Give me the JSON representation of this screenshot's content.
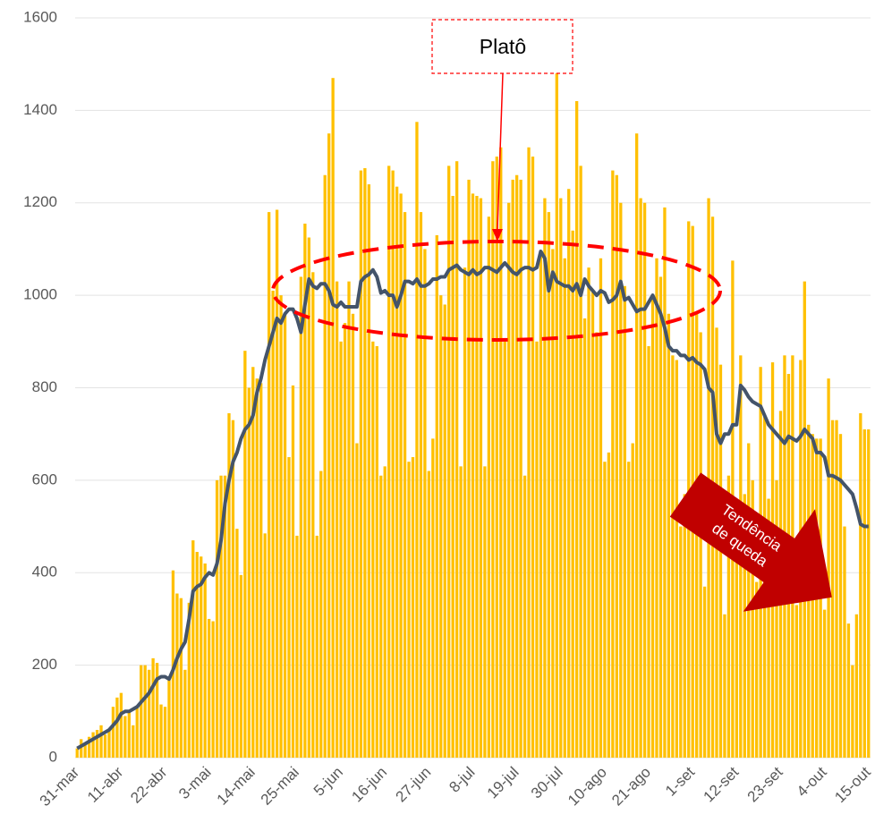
{
  "chart_data": {
    "type": "bar",
    "categories": [
      "31-mar",
      null,
      null,
      null,
      null,
      null,
      null,
      null,
      null,
      null,
      null,
      "11-abr",
      null,
      null,
      null,
      null,
      null,
      null,
      null,
      null,
      null,
      null,
      "22-abr",
      null,
      null,
      null,
      null,
      null,
      null,
      null,
      null,
      null,
      null,
      "3-mai",
      null,
      null,
      null,
      null,
      null,
      null,
      null,
      null,
      null,
      null,
      "14-mai",
      null,
      null,
      null,
      null,
      null,
      null,
      null,
      null,
      null,
      null,
      "25-mai",
      null,
      null,
      null,
      null,
      null,
      null,
      null,
      null,
      null,
      null,
      "5-jun",
      null,
      null,
      null,
      null,
      null,
      null,
      null,
      null,
      null,
      null,
      "16-jun",
      null,
      null,
      null,
      null,
      null,
      null,
      null,
      null,
      null,
      null,
      "27-jun",
      null,
      null,
      null,
      null,
      null,
      null,
      null,
      null,
      null,
      null,
      "8-jul",
      null,
      null,
      null,
      null,
      null,
      null,
      null,
      null,
      null,
      null,
      "19-jul",
      null,
      null,
      null,
      null,
      null,
      null,
      null,
      null,
      null,
      null,
      "30-jul",
      null,
      null,
      null,
      null,
      null,
      null,
      null,
      null,
      null,
      null,
      "10-ago",
      null,
      null,
      null,
      null,
      null,
      null,
      null,
      null,
      null,
      null,
      "21-ago",
      null,
      null,
      null,
      null,
      null,
      null,
      null,
      null,
      null,
      null,
      "1-set",
      null,
      null,
      null,
      null,
      null,
      null,
      null,
      null,
      null,
      null,
      "12-set",
      null,
      null,
      null,
      null,
      null,
      null,
      null,
      null,
      null,
      null,
      "23-set",
      null,
      null,
      null,
      null,
      null,
      null,
      null,
      null,
      null,
      null,
      "4-out",
      null,
      null,
      null,
      null,
      null,
      null,
      null,
      null,
      null,
      null,
      "15-out"
    ],
    "series": [
      {
        "type": "bar",
        "color": "#FFC000",
        "values": [
          20,
          40,
          30,
          45,
          55,
          60,
          70,
          50,
          60,
          110,
          130,
          140,
          90,
          100,
          70,
          110,
          200,
          200,
          190,
          215,
          205,
          115,
          110,
          170,
          405,
          355,
          345,
          190,
          335,
          470,
          445,
          435,
          420,
          300,
          295,
          600,
          610,
          610,
          745,
          730,
          495,
          395,
          880,
          800,
          845,
          820,
          810,
          485,
          1180,
          1010,
          1185,
          1000,
          960,
          650,
          805,
          480,
          1040,
          1155,
          1125,
          1050,
          480,
          620,
          1260,
          1350,
          1470,
          1030,
          900,
          940,
          1030,
          960,
          680,
          1270,
          1275,
          1240,
          900,
          890,
          610,
          630,
          1280,
          1270,
          1235,
          1220,
          1180,
          640,
          650,
          1375,
          1180,
          1100,
          620,
          690,
          1130,
          1000,
          980,
          1280,
          1215,
          1290,
          630,
          1060,
          1250,
          1220,
          1215,
          1210,
          630,
          1170,
          1290,
          1300,
          1320,
          900,
          1200,
          1250,
          1260,
          1250,
          610,
          1320,
          1300,
          900,
          1090,
          1210,
          1180,
          1100,
          1590,
          1210,
          1080,
          1230,
          1140,
          1420,
          1280,
          950,
          1060,
          1010,
          920,
          1080,
          640,
          660,
          1270,
          1260,
          1200,
          1020,
          640,
          680,
          1350,
          1210,
          1200,
          890,
          1000,
          1080,
          1040,
          1190,
          960,
          870,
          860,
          500,
          570,
          1160,
          1150,
          960,
          920,
          370,
          1210,
          1170,
          930,
          850,
          310,
          610,
          1075,
          440,
          870,
          570,
          680,
          600,
          380,
          845,
          740,
          560,
          855,
          600,
          750,
          870,
          830,
          870,
          330,
          860,
          1030,
          720,
          700,
          690,
          690,
          320,
          820,
          730,
          730,
          700,
          500,
          290,
          200,
          310,
          745,
          710,
          710
        ]
      },
      {
        "type": "line",
        "color": "#44546A",
        "values": [
          20,
          25,
          30,
          35,
          40,
          45,
          50,
          55,
          60,
          70,
          80,
          95,
          100,
          100,
          105,
          110,
          120,
          130,
          140,
          155,
          170,
          175,
          175,
          170,
          190,
          215,
          235,
          250,
          300,
          360,
          370,
          375,
          390,
          400,
          395,
          420,
          470,
          550,
          600,
          640,
          660,
          690,
          710,
          720,
          740,
          790,
          820,
          860,
          890,
          920,
          950,
          940,
          960,
          970,
          970,
          950,
          920,
          980,
          1035,
          1020,
          1015,
          1025,
          1025,
          1010,
          980,
          975,
          985,
          975,
          975,
          975,
          975,
          1030,
          1040,
          1045,
          1055,
          1040,
          1005,
          1010,
          1000,
          1000,
          975,
          1000,
          1030,
          1030,
          1025,
          1035,
          1020,
          1020,
          1025,
          1035,
          1035,
          1040,
          1040,
          1055,
          1060,
          1065,
          1055,
          1050,
          1045,
          1055,
          1045,
          1050,
          1060,
          1060,
          1055,
          1050,
          1060,
          1070,
          1060,
          1050,
          1045,
          1055,
          1060,
          1060,
          1055,
          1060,
          1095,
          1080,
          1010,
          1050,
          1030,
          1025,
          1020,
          1020,
          1010,
          1025,
          1000,
          1035,
          1020,
          1010,
          1000,
          1010,
          1005,
          985,
          990,
          1000,
          1030,
          990,
          995,
          980,
          965,
          970,
          970,
          985,
          1000,
          980,
          960,
          930,
          890,
          880,
          880,
          870,
          870,
          860,
          865,
          855,
          850,
          840,
          800,
          790,
          700,
          680,
          700,
          700,
          720,
          720,
          805,
          795,
          780,
          770,
          765,
          760,
          740,
          720,
          710,
          700,
          690,
          680,
          695,
          690,
          685,
          695,
          710,
          700,
          690,
          660,
          660,
          650,
          610,
          610,
          605,
          600,
          590,
          580,
          570,
          540,
          505,
          500,
          500
        ]
      }
    ],
    "ylim": [
      0,
      1600
    ],
    "yticks": [
      0,
      200,
      400,
      600,
      800,
      1000,
      1200,
      1400,
      1600
    ],
    "grid": true,
    "plateau_label": "Platô",
    "trend_label": [
      "Tendência",
      "de queda"
    ]
  }
}
